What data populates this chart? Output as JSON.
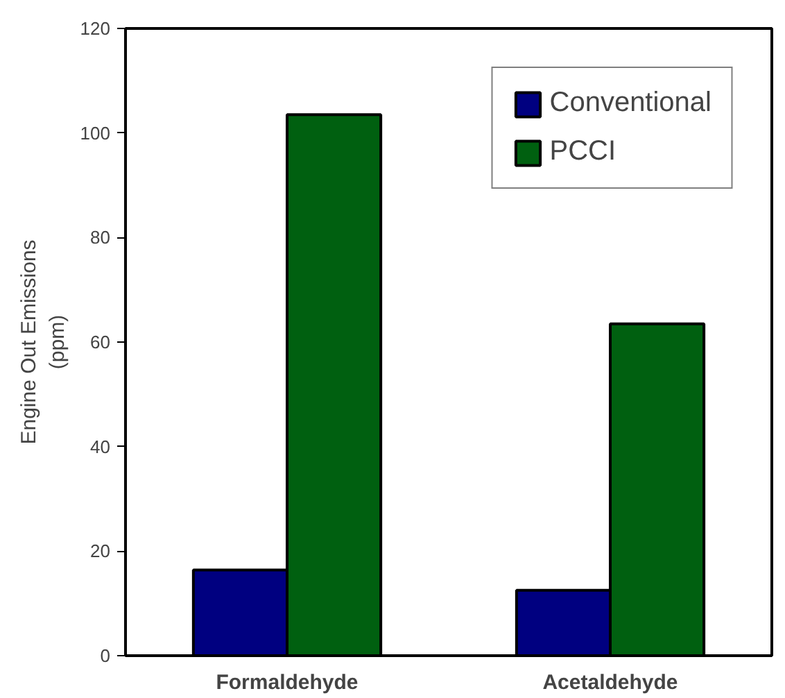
{
  "chart_data": {
    "type": "bar",
    "ylabel": "Engine Out Emissions\n(ppm)",
    "categories": [
      "Formaldehyde",
      "Acetaldehyde"
    ],
    "series": [
      {
        "name": "Conventional",
        "color": "#000080",
        "values": [
          16.4,
          12.5
        ]
      },
      {
        "name": "PCCI",
        "color": "#006010",
        "values": [
          103.5,
          63.5
        ]
      }
    ],
    "ylim": [
      0,
      120
    ],
    "yticks": [
      0,
      20,
      40,
      60,
      80,
      100,
      120
    ],
    "legend": "top right",
    "grid": false
  }
}
